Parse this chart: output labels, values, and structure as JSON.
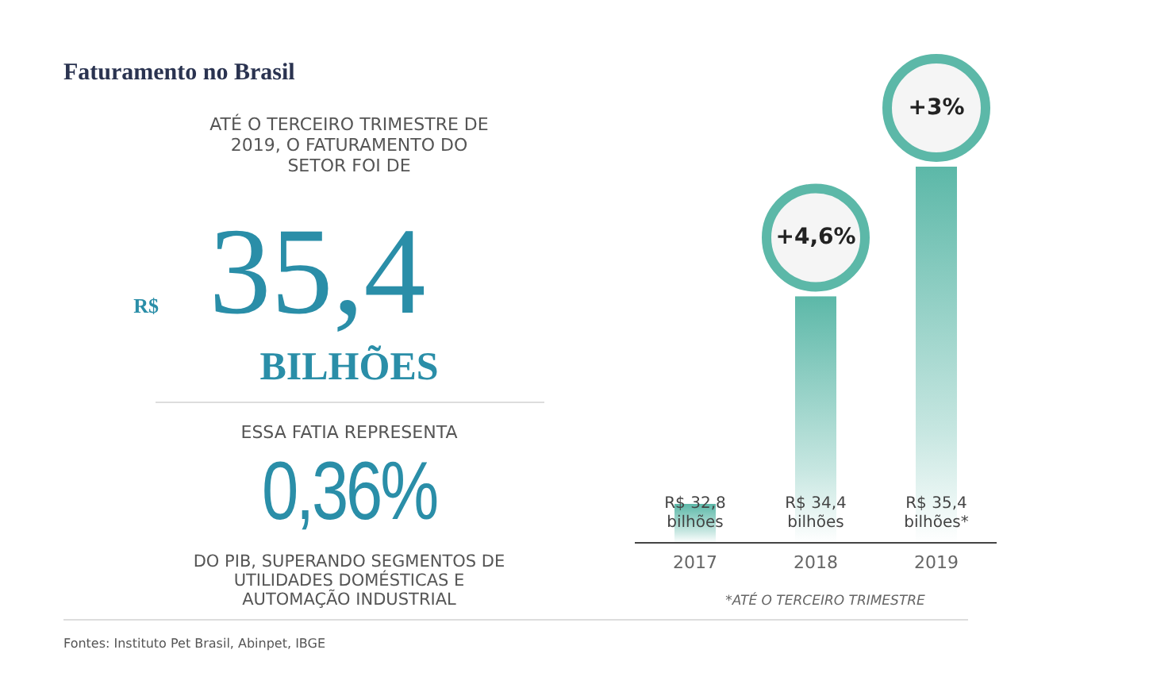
{
  "chart_data": {
    "type": "bar",
    "title": "Faturamento no Brasil",
    "ylim": [
      32.5,
      35.4
    ],
    "categories": [
      "2017",
      "2018",
      "2019"
    ],
    "values": [
      32.8,
      34.4,
      35.4
    ],
    "color": "#5cb8a8",
    "value_labels": [
      "R$ 32,8 bilhões",
      "R$ 34,4 bilhões",
      "R$ 35,4 bilhões*"
    ],
    "annotations": [
      "ATÉ O TERCEIRO TRIMESTRE DE 2019, O FATURAMENTO DO SETOR FOI DE",
      "R$",
      "35,4",
      "BILHÕES",
      "ESSA FATIA REPRESENTA",
      "0,36%",
      "DO PIB, SUPERANDO SEGMENTOS DE UTILIDADES DOMÉSTICAS E AUTOMAÇÃO INDUSTRIAL",
      "*ATÉ O TERCEIRO TRIMESTRE",
      "Fontes: Instituto Pet Brasil, Abinpet, IBGE",
      {
        "text": "+4,6%",
        "x": "2018",
        "y": 34.4
      },
      {
        "text": "+3%",
        "x": "2019",
        "y": 35.4
      }
    ],
    "grid": false,
    "legend": false
  }
}
